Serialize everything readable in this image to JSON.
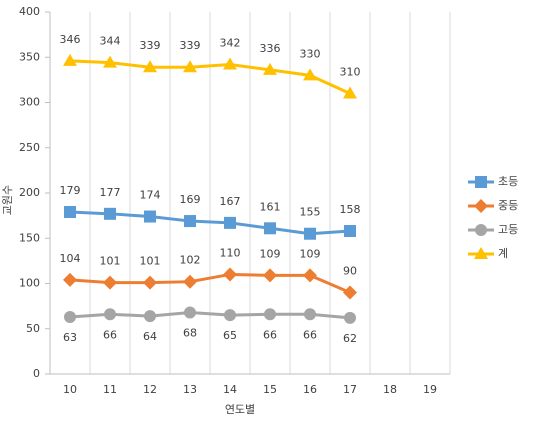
{
  "chart_data": {
    "type": "line",
    "x_label": "연도별",
    "y_label": "교원수",
    "categories": [
      "10",
      "11",
      "12",
      "13",
      "14",
      "15",
      "16",
      "17",
      "18",
      "19"
    ],
    "series": [
      {
        "name": "초등",
        "color": "#5b9bd5",
        "marker": "square",
        "label_position": "above",
        "values": [
          179,
          177,
          174,
          169,
          167,
          161,
          155,
          158,
          null,
          null
        ]
      },
      {
        "name": "중등",
        "color": "#ed7d31",
        "marker": "diamond",
        "label_position": "above",
        "values": [
          104,
          101,
          101,
          102,
          110,
          109,
          109,
          90,
          null,
          null
        ]
      },
      {
        "name": "고등",
        "color": "#a5a5a5",
        "marker": "circle",
        "label_position": "below",
        "values": [
          63,
          66,
          64,
          68,
          65,
          66,
          66,
          62,
          null,
          null
        ]
      },
      {
        "name": "계",
        "color": "#ffc000",
        "marker": "triangle",
        "label_position": "above",
        "values": [
          346,
          344,
          339,
          339,
          342,
          336,
          330,
          310,
          null,
          null
        ]
      }
    ],
    "ylim": [
      0,
      400
    ],
    "yticks": [
      0,
      50,
      100,
      150,
      200,
      250,
      300,
      350,
      400
    ],
    "grid": "vertical",
    "legend": "right"
  }
}
